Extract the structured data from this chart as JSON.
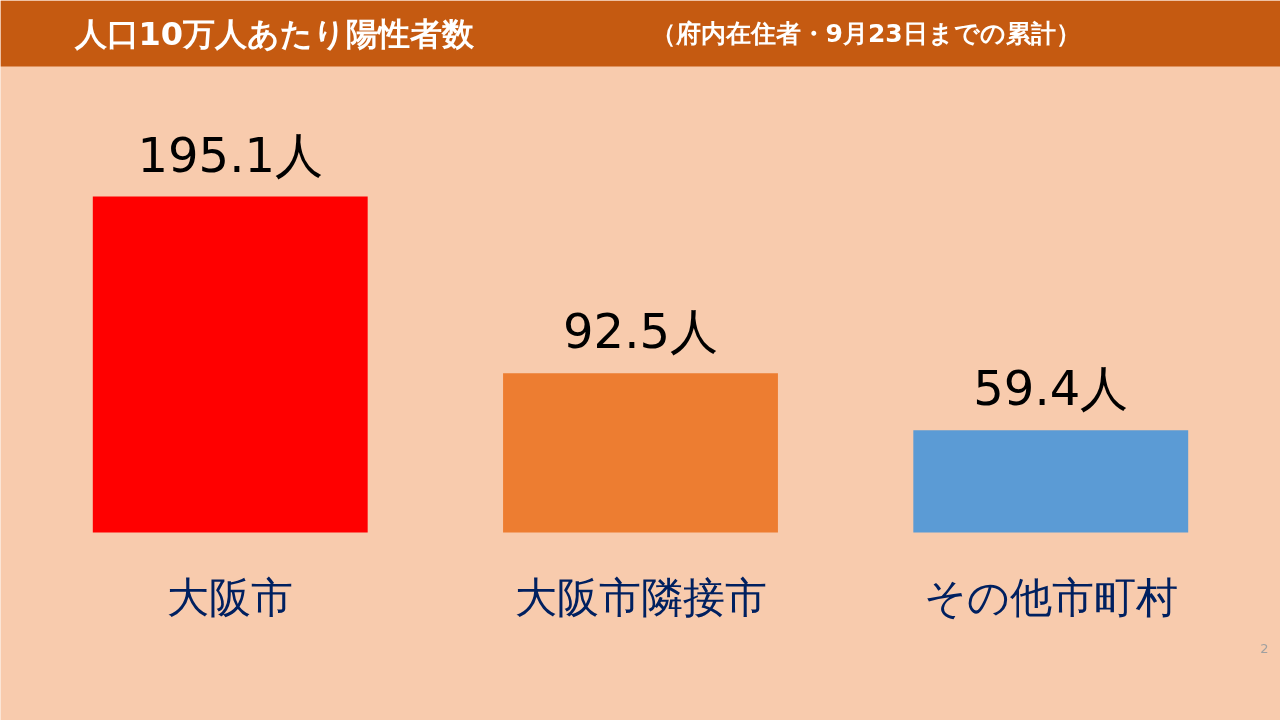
{
  "chart_data": {
    "type": "bar",
    "title": "人口10万人あたり陽性者数",
    "subtitle": "（府内在住者・9月23日までの累計）",
    "categories": [
      "大阪市",
      "大阪市隣接市",
      "その他市町村"
    ],
    "values": [
      195.1,
      92.5,
      59.4
    ],
    "colors": [
      "#ff0000",
      "#ed7d31",
      "#5b9bd5"
    ],
    "value_labels": [
      "195.1人",
      "92.5人",
      "59.4人"
    ],
    "annotations": [
      "2"
    ],
    "grid": false
  }
}
